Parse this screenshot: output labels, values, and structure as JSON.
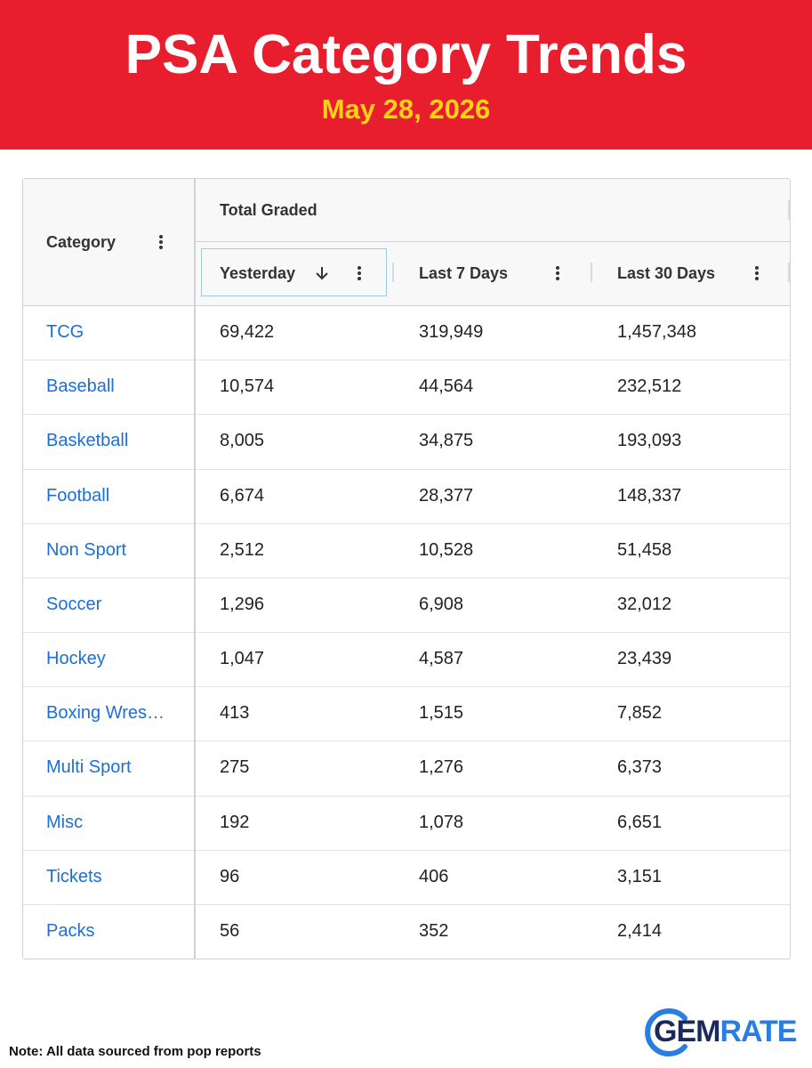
{
  "header": {
    "title": "PSA Category Trends",
    "subtitle": "May 28, 2026"
  },
  "table": {
    "group_header": "Total Graded",
    "columns": [
      "Category",
      "Yesterday",
      "Last 7 Days",
      "Last 30 Days"
    ],
    "rows": [
      [
        "TCG",
        "69,422",
        "319,949",
        "1,457,348"
      ],
      [
        "Baseball",
        "10,574",
        "44,564",
        "232,512"
      ],
      [
        "Basketball",
        "8,005",
        "34,875",
        "193,093"
      ],
      [
        "Football",
        "6,674",
        "28,377",
        "148,337"
      ],
      [
        "Non Sport",
        "2,512",
        "10,528",
        "51,458"
      ],
      [
        "Soccer",
        "1,296",
        "6,908",
        "32,012"
      ],
      [
        "Hockey",
        "1,047",
        "4,587",
        "23,439"
      ],
      [
        "Boxing Wres…",
        "413",
        "1,515",
        "7,852"
      ],
      [
        "Multi Sport",
        "275",
        "1,276",
        "6,373"
      ],
      [
        "Misc",
        "192",
        "1,078",
        "6,651"
      ],
      [
        "Tickets",
        "96",
        "406",
        "3,151"
      ],
      [
        "Packs",
        "56",
        "352",
        "2,414"
      ]
    ]
  },
  "footer": {
    "note": "Note: All data sourced from pop reports",
    "logo_left": "GEM",
    "logo_right": "RATE"
  }
}
